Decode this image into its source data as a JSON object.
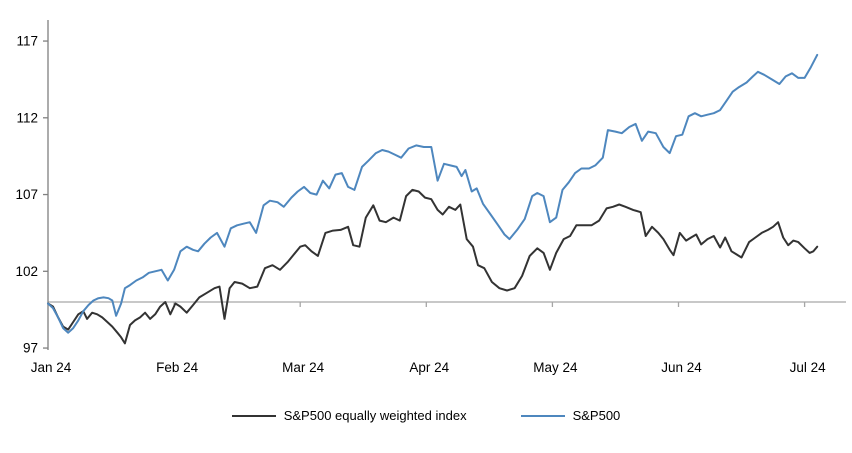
{
  "chart_data": {
    "type": "line",
    "title": "",
    "xlabel": "",
    "ylabel": "",
    "x_tick_labels": [
      "Jan 24",
      "Feb 24",
      "Mar 24",
      "Apr 24",
      "May 24",
      "Jun 24",
      "Jul 24"
    ],
    "y_ticks": [
      97,
      102,
      107,
      112,
      117
    ],
    "ylim": [
      97,
      118.3
    ],
    "x_range_months": [
      0,
      6.3
    ],
    "baseline_value": 100,
    "grid": "off",
    "legend_position": "bottom-center",
    "colors": {
      "axis": "#808080",
      "baseline": "#a6a6a6",
      "text": "#000000"
    },
    "series": [
      {
        "name": "S&P500 equally weighted index",
        "color": "#333333",
        "points": [
          [
            0.0,
            99.9
          ],
          [
            0.04,
            99.7
          ],
          [
            0.08,
            99.0
          ],
          [
            0.12,
            98.4
          ],
          [
            0.16,
            98.2
          ],
          [
            0.2,
            98.7
          ],
          [
            0.24,
            99.2
          ],
          [
            0.28,
            99.4
          ],
          [
            0.31,
            98.9
          ],
          [
            0.35,
            99.3
          ],
          [
            0.39,
            99.2
          ],
          [
            0.43,
            99.0
          ],
          [
            0.47,
            98.7
          ],
          [
            0.51,
            98.4
          ],
          [
            0.55,
            98.0
          ],
          [
            0.58,
            97.7
          ],
          [
            0.61,
            97.3
          ],
          [
            0.65,
            98.5
          ],
          [
            0.69,
            98.8
          ],
          [
            0.73,
            99.0
          ],
          [
            0.77,
            99.3
          ],
          [
            0.81,
            98.9
          ],
          [
            0.85,
            99.2
          ],
          [
            0.89,
            99.7
          ],
          [
            0.93,
            100.0
          ],
          [
            0.97,
            99.2
          ],
          [
            1.01,
            99.9
          ],
          [
            1.05,
            99.7
          ],
          [
            1.1,
            99.3
          ],
          [
            1.15,
            99.8
          ],
          [
            1.2,
            100.3
          ],
          [
            1.26,
            100.6
          ],
          [
            1.32,
            100.9
          ],
          [
            1.36,
            101.0
          ],
          [
            1.4,
            98.9
          ],
          [
            1.44,
            100.9
          ],
          [
            1.48,
            101.3
          ],
          [
            1.54,
            101.2
          ],
          [
            1.6,
            100.9
          ],
          [
            1.66,
            101.0
          ],
          [
            1.72,
            102.2
          ],
          [
            1.78,
            102.4
          ],
          [
            1.84,
            102.1
          ],
          [
            1.9,
            102.6
          ],
          [
            1.95,
            103.1
          ],
          [
            2.0,
            103.6
          ],
          [
            2.04,
            103.7
          ],
          [
            2.09,
            103.3
          ],
          [
            2.14,
            103.0
          ],
          [
            2.2,
            104.5
          ],
          [
            2.26,
            104.65
          ],
          [
            2.32,
            104.7
          ],
          [
            2.38,
            104.9
          ],
          [
            2.42,
            103.7
          ],
          [
            2.47,
            103.6
          ],
          [
            2.52,
            105.5
          ],
          [
            2.58,
            106.3
          ],
          [
            2.63,
            105.3
          ],
          [
            2.68,
            105.2
          ],
          [
            2.74,
            105.5
          ],
          [
            2.79,
            105.3
          ],
          [
            2.84,
            106.9
          ],
          [
            2.89,
            107.3
          ],
          [
            2.94,
            107.2
          ],
          [
            2.99,
            106.8
          ],
          [
            3.04,
            106.7
          ],
          [
            3.09,
            106.0
          ],
          [
            3.13,
            105.7
          ],
          [
            3.18,
            106.2
          ],
          [
            3.23,
            106.0
          ],
          [
            3.27,
            106.35
          ],
          [
            3.32,
            104.1
          ],
          [
            3.37,
            103.6
          ],
          [
            3.41,
            102.4
          ],
          [
            3.46,
            102.2
          ],
          [
            3.52,
            101.3
          ],
          [
            3.58,
            100.9
          ],
          [
            3.64,
            100.75
          ],
          [
            3.7,
            100.9
          ],
          [
            3.76,
            101.7
          ],
          [
            3.82,
            103.0
          ],
          [
            3.88,
            103.5
          ],
          [
            3.93,
            103.2
          ],
          [
            3.98,
            102.1
          ],
          [
            4.03,
            103.2
          ],
          [
            4.09,
            104.1
          ],
          [
            4.14,
            104.3
          ],
          [
            4.19,
            105.0
          ],
          [
            4.25,
            105.0
          ],
          [
            4.31,
            105.0
          ],
          [
            4.37,
            105.3
          ],
          [
            4.43,
            106.1
          ],
          [
            4.48,
            106.2
          ],
          [
            4.53,
            106.35
          ],
          [
            4.58,
            106.2
          ],
          [
            4.64,
            106.0
          ],
          [
            4.7,
            105.85
          ],
          [
            4.74,
            104.3
          ],
          [
            4.79,
            104.9
          ],
          [
            4.84,
            104.5
          ],
          [
            4.88,
            104.1
          ],
          [
            4.93,
            103.4
          ],
          [
            4.96,
            103.05
          ],
          [
            5.01,
            104.5
          ],
          [
            5.06,
            104.0
          ],
          [
            5.1,
            104.2
          ],
          [
            5.14,
            104.4
          ],
          [
            5.18,
            103.75
          ],
          [
            5.23,
            104.1
          ],
          [
            5.28,
            104.3
          ],
          [
            5.33,
            103.55
          ],
          [
            5.37,
            104.2
          ],
          [
            5.42,
            103.3
          ],
          [
            5.46,
            103.1
          ],
          [
            5.5,
            102.9
          ],
          [
            5.56,
            103.9
          ],
          [
            5.61,
            104.2
          ],
          [
            5.66,
            104.5
          ],
          [
            5.71,
            104.7
          ],
          [
            5.75,
            104.9
          ],
          [
            5.79,
            105.2
          ],
          [
            5.83,
            104.2
          ],
          [
            5.87,
            103.7
          ],
          [
            5.91,
            104.0
          ],
          [
            5.95,
            103.9
          ],
          [
            6.0,
            103.5
          ],
          [
            6.04,
            103.2
          ],
          [
            6.07,
            103.3
          ],
          [
            6.1,
            103.6
          ]
        ]
      },
      {
        "name": "S&P500",
        "color": "#4e87be",
        "points": [
          [
            0.0,
            99.9
          ],
          [
            0.04,
            99.6
          ],
          [
            0.08,
            99.0
          ],
          [
            0.12,
            98.3
          ],
          [
            0.16,
            98.0
          ],
          [
            0.2,
            98.3
          ],
          [
            0.24,
            98.8
          ],
          [
            0.28,
            99.4
          ],
          [
            0.32,
            99.8
          ],
          [
            0.36,
            100.1
          ],
          [
            0.4,
            100.25
          ],
          [
            0.44,
            100.3
          ],
          [
            0.48,
            100.25
          ],
          [
            0.51,
            100.1
          ],
          [
            0.54,
            99.1
          ],
          [
            0.58,
            99.9
          ],
          [
            0.61,
            100.9
          ],
          [
            0.65,
            101.1
          ],
          [
            0.7,
            101.4
          ],
          [
            0.75,
            101.6
          ],
          [
            0.8,
            101.9
          ],
          [
            0.85,
            102.0
          ],
          [
            0.9,
            102.1
          ],
          [
            0.95,
            101.4
          ],
          [
            1.0,
            102.1
          ],
          [
            1.05,
            103.3
          ],
          [
            1.1,
            103.6
          ],
          [
            1.15,
            103.4
          ],
          [
            1.19,
            103.3
          ],
          [
            1.24,
            103.8
          ],
          [
            1.29,
            104.2
          ],
          [
            1.34,
            104.5
          ],
          [
            1.4,
            103.6
          ],
          [
            1.45,
            104.8
          ],
          [
            1.5,
            105.0
          ],
          [
            1.55,
            105.1
          ],
          [
            1.6,
            105.2
          ],
          [
            1.65,
            104.5
          ],
          [
            1.71,
            106.3
          ],
          [
            1.76,
            106.6
          ],
          [
            1.82,
            106.5
          ],
          [
            1.87,
            106.2
          ],
          [
            1.93,
            106.8
          ],
          [
            1.98,
            107.2
          ],
          [
            2.03,
            107.5
          ],
          [
            2.08,
            107.1
          ],
          [
            2.13,
            107.0
          ],
          [
            2.18,
            107.9
          ],
          [
            2.23,
            107.4
          ],
          [
            2.28,
            108.3
          ],
          [
            2.33,
            108.4
          ],
          [
            2.38,
            107.5
          ],
          [
            2.43,
            107.3
          ],
          [
            2.49,
            108.8
          ],
          [
            2.54,
            109.2
          ],
          [
            2.6,
            109.7
          ],
          [
            2.65,
            109.9
          ],
          [
            2.7,
            109.8
          ],
          [
            2.75,
            109.6
          ],
          [
            2.8,
            109.4
          ],
          [
            2.86,
            110.0
          ],
          [
            2.92,
            110.2
          ],
          [
            2.98,
            110.1
          ],
          [
            3.04,
            110.1
          ],
          [
            3.09,
            107.9
          ],
          [
            3.14,
            109.0
          ],
          [
            3.19,
            108.9
          ],
          [
            3.24,
            108.8
          ],
          [
            3.28,
            108.2
          ],
          [
            3.31,
            108.6
          ],
          [
            3.36,
            107.2
          ],
          [
            3.4,
            107.4
          ],
          [
            3.45,
            106.4
          ],
          [
            3.51,
            105.7
          ],
          [
            3.57,
            105.0
          ],
          [
            3.62,
            104.4
          ],
          [
            3.66,
            104.1
          ],
          [
            3.72,
            104.7
          ],
          [
            3.78,
            105.4
          ],
          [
            3.84,
            106.9
          ],
          [
            3.88,
            107.1
          ],
          [
            3.93,
            106.9
          ],
          [
            3.98,
            105.2
          ],
          [
            4.03,
            105.5
          ],
          [
            4.08,
            107.3
          ],
          [
            4.13,
            107.8
          ],
          [
            4.18,
            108.4
          ],
          [
            4.23,
            108.7
          ],
          [
            4.29,
            108.7
          ],
          [
            4.34,
            108.9
          ],
          [
            4.4,
            109.4
          ],
          [
            4.44,
            111.2
          ],
          [
            4.5,
            111.1
          ],
          [
            4.55,
            111.0
          ],
          [
            4.61,
            111.4
          ],
          [
            4.66,
            111.6
          ],
          [
            4.71,
            110.5
          ],
          [
            4.76,
            111.1
          ],
          [
            4.82,
            111.0
          ],
          [
            4.88,
            110.1
          ],
          [
            4.93,
            109.7
          ],
          [
            4.98,
            110.8
          ],
          [
            5.03,
            110.9
          ],
          [
            5.08,
            112.1
          ],
          [
            5.13,
            112.3
          ],
          [
            5.18,
            112.1
          ],
          [
            5.23,
            112.2
          ],
          [
            5.28,
            112.3
          ],
          [
            5.33,
            112.5
          ],
          [
            5.38,
            113.1
          ],
          [
            5.43,
            113.7
          ],
          [
            5.48,
            114.0
          ],
          [
            5.54,
            114.3
          ],
          [
            5.59,
            114.7
          ],
          [
            5.63,
            115.0
          ],
          [
            5.68,
            114.8
          ],
          [
            5.74,
            114.5
          ],
          [
            5.8,
            114.2
          ],
          [
            5.85,
            114.7
          ],
          [
            5.9,
            114.9
          ],
          [
            5.95,
            114.6
          ],
          [
            6.0,
            114.6
          ],
          [
            6.05,
            115.3
          ],
          [
            6.1,
            116.1
          ]
        ]
      }
    ]
  }
}
